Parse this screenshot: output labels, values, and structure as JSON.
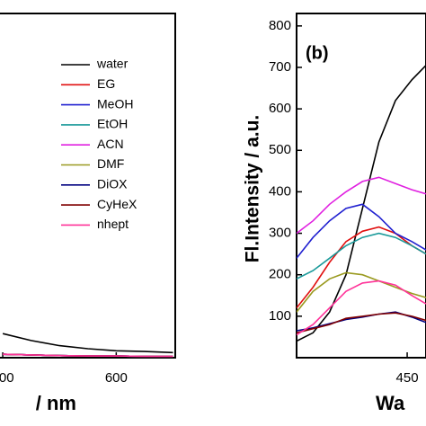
{
  "chart_data": [
    {
      "type": "line",
      "x_label": "/ nm",
      "x": [
        400,
        450,
        500,
        550,
        600,
        650,
        700
      ],
      "xlim": [
        392,
        704
      ],
      "xticks": [
        400,
        600
      ],
      "ylim": [
        0,
        100
      ],
      "legend": "upper right",
      "series": [
        {
          "name": "water",
          "color": "#000000",
          "values": [
            7,
            5,
            3.5,
            2.6,
            2,
            1.8,
            1.5
          ]
        },
        {
          "name": "EG",
          "color": "#e01010",
          "values": [
            1,
            0.8,
            0.6,
            0.5,
            0.5,
            0.4,
            0.4
          ]
        },
        {
          "name": "MeOH",
          "color": "#2020d0",
          "values": [
            1,
            0.8,
            0.6,
            0.5,
            0.5,
            0.4,
            0.4
          ]
        },
        {
          "name": "EtOH",
          "color": "#1a9a9a",
          "values": [
            1,
            0.8,
            0.6,
            0.5,
            0.5,
            0.4,
            0.4
          ]
        },
        {
          "name": "ACN",
          "color": "#e020e0",
          "values": [
            1,
            0.8,
            0.6,
            0.5,
            0.5,
            0.4,
            0.4
          ]
        },
        {
          "name": "DMF",
          "color": "#9a9a20",
          "values": [
            1,
            0.8,
            0.6,
            0.5,
            0.5,
            0.4,
            0.4
          ]
        },
        {
          "name": "DiOX",
          "color": "#000080",
          "values": [
            1,
            0.8,
            0.6,
            0.5,
            0.5,
            0.4,
            0.4
          ]
        },
        {
          "name": "CyHeX",
          "color": "#800000",
          "values": [
            1,
            0.8,
            0.6,
            0.5,
            0.5,
            0.4,
            0.4
          ]
        },
        {
          "name": "nhept",
          "color": "#ff3399",
          "values": [
            1,
            0.8,
            0.6,
            0.5,
            0.5,
            0.4,
            0.4
          ]
        }
      ]
    },
    {
      "type": "line",
      "panel_label": "(b)",
      "x_label": "Wa",
      "y_label": "Fl.Intensity / a.u.",
      "x": [
        403,
        410,
        417,
        424,
        431,
        438,
        445,
        452,
        458
      ],
      "xlim": [
        403,
        458
      ],
      "xticks": [
        450
      ],
      "ylim": [
        0,
        830
      ],
      "yticks": [
        100,
        200,
        300,
        400,
        500,
        600,
        700,
        800
      ],
      "series": [
        {
          "name": "water",
          "color": "#000000",
          "values": [
            40,
            60,
            110,
            200,
            360,
            520,
            620,
            670,
            705
          ]
        },
        {
          "name": "EG",
          "color": "#e01010",
          "values": [
            120,
            170,
            230,
            280,
            305,
            315,
            300,
            270,
            250
          ]
        },
        {
          "name": "MeOH",
          "color": "#2020d0",
          "values": [
            240,
            290,
            330,
            360,
            370,
            340,
            300,
            280,
            260
          ]
        },
        {
          "name": "EtOH",
          "color": "#1a9a9a",
          "values": [
            190,
            210,
            240,
            270,
            290,
            300,
            290,
            270,
            250
          ]
        },
        {
          "name": "ACN",
          "color": "#e020e0",
          "values": [
            300,
            330,
            370,
            400,
            425,
            435,
            420,
            405,
            395
          ]
        },
        {
          "name": "DMF",
          "color": "#9a9a20",
          "values": [
            110,
            160,
            190,
            205,
            200,
            185,
            170,
            155,
            145
          ]
        },
        {
          "name": "DiOX",
          "color": "#000080",
          "values": [
            65,
            72,
            82,
            92,
            98,
            105,
            110,
            98,
            85
          ]
        },
        {
          "name": "CyHeX",
          "color": "#800000",
          "values": [
            60,
            70,
            80,
            95,
            100,
            105,
            108,
            100,
            90
          ]
        },
        {
          "name": "nhept",
          "color": "#ff3399",
          "values": [
            55,
            80,
            120,
            160,
            180,
            185,
            175,
            150,
            130
          ]
        }
      ]
    }
  ]
}
